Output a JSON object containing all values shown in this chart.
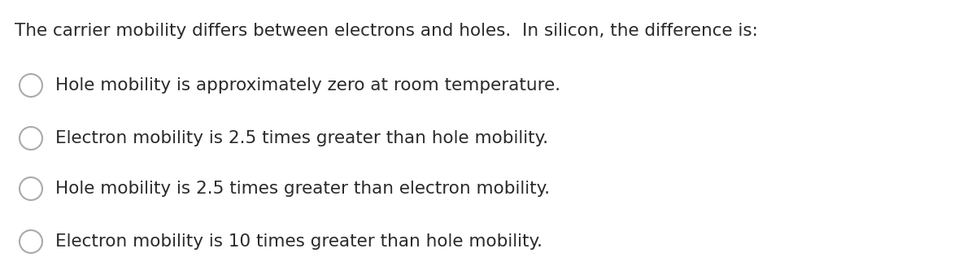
{
  "background_color": "#ffffff",
  "title": "The carrier mobility differs between electrons and holes.  In silicon, the difference is:",
  "title_fontsize": 15.5,
  "title_color": "#2a2a2a",
  "title_font": "DejaVu Sans",
  "options": [
    "Hole mobility is approximately zero at room temperature.",
    "Electron mobility is 2.5 times greater than hole mobility.",
    "Hole mobility is 2.5 times greater than electron mobility.",
    "Electron mobility is 10 times greater than hole mobility."
  ],
  "option_fontsize": 15.5,
  "option_color": "#2a2a2a",
  "circle_edge_color": "#aaaaaa",
  "circle_face_color": "#ffffff",
  "circle_linewidth": 1.5,
  "fig_width": 12.0,
  "fig_height": 3.43,
  "dpi": 100
}
